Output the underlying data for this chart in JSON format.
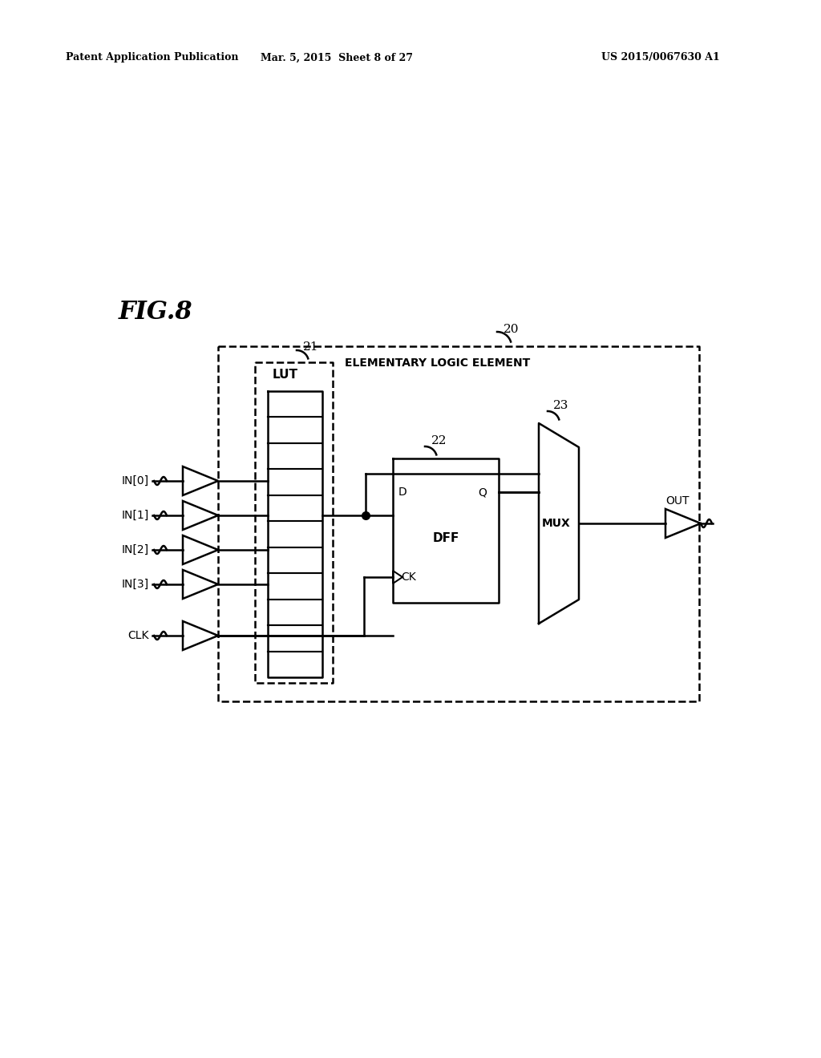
{
  "title_left": "Patent Application Publication",
  "title_mid": "Mar. 5, 2015  Sheet 8 of 27",
  "title_right": "US 2015/0067630 A1",
  "fig_label": "FIG.8",
  "background": "#ffffff",
  "line_color": "#000000",
  "lw": 1.8,
  "inputs": [
    "IN[0]",
    "IN[1]",
    "IN[2]",
    "IN[3]"
  ],
  "clk_label": "CLK",
  "out_label": "OUT",
  "lut_label": "LUT",
  "dff_label": "DFF",
  "mux_label": "MUX",
  "label_20": "20",
  "label_21": "21",
  "label_22": "22",
  "label_23": "23",
  "elem_label": "ELEMENTARY LOGIC ELEMENT",
  "n_lut_rows": 11
}
